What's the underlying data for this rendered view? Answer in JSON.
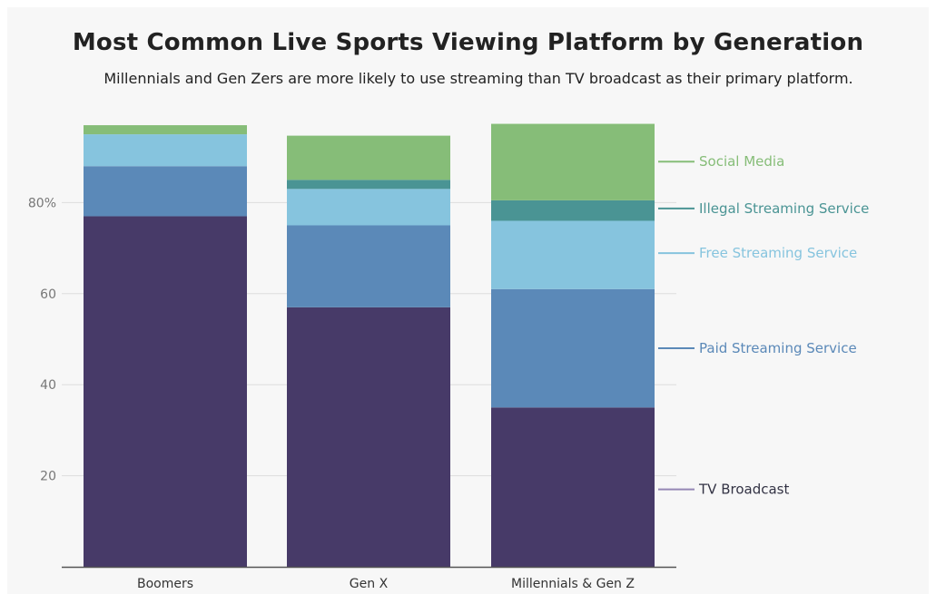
{
  "chart_data": {
    "type": "bar",
    "stacked": true,
    "title": "Most Common Live Sports Viewing Platform by Generation",
    "subtitle": "Millennials and Gen Zers are more likely to use streaming than TV broadcast as their primary platform.",
    "categories": [
      "Boomers",
      "Gen X",
      "Millennials & Gen Z"
    ],
    "series": [
      {
        "name": "TV Broadcast",
        "color": "#473a68",
        "values": [
          77,
          57,
          35
        ]
      },
      {
        "name": "Paid Streaming Service",
        "color": "#5b89b8",
        "values": [
          11,
          18,
          26
        ]
      },
      {
        "name": "Free Streaming Service",
        "color": "#86c4de",
        "values": [
          7,
          8,
          15
        ]
      },
      {
        "name": "Illegal Streaming Service",
        "color": "#4a9494",
        "values": [
          0,
          2,
          4.5
        ]
      },
      {
        "name": "Social Media",
        "color": "#86bd78",
        "values": [
          2,
          9.7,
          16.8
        ]
      }
    ],
    "yticks": [
      {
        "value": 20,
        "label": "20"
      },
      {
        "value": 40,
        "label": "40"
      },
      {
        "value": 60,
        "label": "60"
      },
      {
        "value": 80,
        "label": "80%"
      }
    ],
    "ylim": [
      0,
      100
    ],
    "grid": true,
    "legend": "right, aligned to last bar",
    "legend_entries": [
      {
        "name": "Social Media",
        "color": "#86bd78",
        "value": 89
      },
      {
        "name": "Illegal Streaming Service",
        "color": "#4a9494",
        "value": 78.7
      },
      {
        "name": "Free Streaming Service",
        "color": "#86c4de",
        "value": 68.9
      },
      {
        "name": "Paid Streaming Service",
        "color": "#5b89b8",
        "value": 48
      },
      {
        "name": "TV Broadcast",
        "color": "#9487b5",
        "value": 17
      }
    ]
  }
}
